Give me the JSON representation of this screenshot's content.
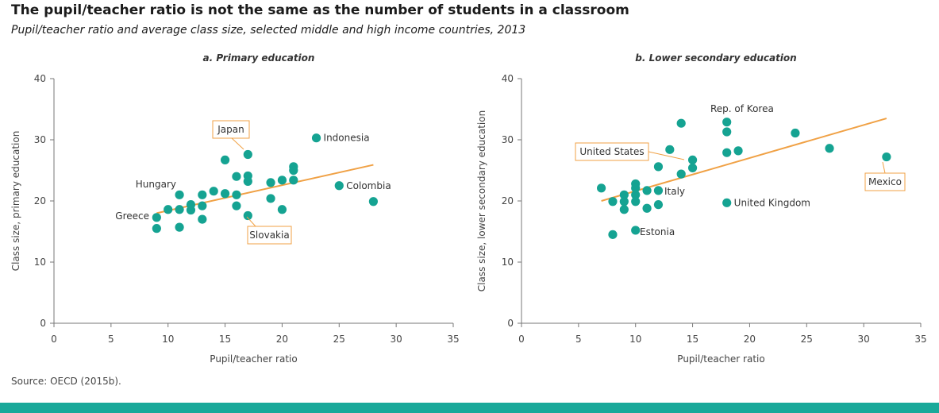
{
  "header": {
    "title": "The pupil/teacher ratio is not the same as the number of students in a classroom",
    "subtitle": "Pupil/teacher ratio and average class size, selected middle and high income countries, 2013"
  },
  "footer": {
    "source": "Source: OECD (2015b)."
  },
  "colors": {
    "points": "#15a392",
    "trend": "#f0a145",
    "bottom_bar": "#1aa99a",
    "label_box": "#f0a145"
  },
  "chart_data": [
    {
      "type": "scatter",
      "title": "a. Primary education",
      "xlabel": "Pupil/teacher ratio",
      "ylabel": "Class size, primary education",
      "xlim": [
        0,
        35
      ],
      "ylim": [
        0,
        40
      ],
      "xticks": [
        "0",
        "5",
        "10",
        "15",
        "20",
        "25",
        "30",
        "35"
      ],
      "yticks": [
        "0",
        "10",
        "20",
        "30",
        "40"
      ],
      "points": [
        [
          9,
          17.3
        ],
        [
          9,
          15.5
        ],
        [
          10,
          18.6
        ],
        [
          11,
          21
        ],
        [
          11,
          18.6
        ],
        [
          11,
          15.7
        ],
        [
          12,
          18.5
        ],
        [
          12,
          19.4
        ],
        [
          13,
          21
        ],
        [
          13,
          19.2
        ],
        [
          13,
          17
        ],
        [
          14,
          21.6
        ],
        [
          15,
          26.7
        ],
        [
          15,
          21.2
        ],
        [
          16,
          24
        ],
        [
          16,
          21
        ],
        [
          16,
          19.2
        ],
        [
          17,
          27.6
        ],
        [
          17,
          24.1
        ],
        [
          17,
          23.2
        ],
        [
          17,
          17.6
        ],
        [
          19,
          23
        ],
        [
          19,
          20.4
        ],
        [
          20,
          23.4
        ],
        [
          20,
          18.6
        ],
        [
          21,
          25.6
        ],
        [
          21,
          25
        ],
        [
          21,
          23.4
        ],
        [
          23,
          30.3
        ],
        [
          25,
          22.5
        ],
        [
          28,
          19.9
        ]
      ],
      "trendline": [
        [
          9,
          18
        ],
        [
          28,
          25.9
        ]
      ],
      "annotations": [
        {
          "text": "Indonesia",
          "x": 23,
          "y": 30.3,
          "boxed": false
        },
        {
          "text": "Colombia",
          "x": 25,
          "y": 22.5,
          "boxed": false
        },
        {
          "text": "Hungary",
          "x": 11,
          "y": 21,
          "boxed": false
        },
        {
          "text": "Greece",
          "x": 9,
          "y": 17.3,
          "boxed": false
        },
        {
          "text": "Japan",
          "x": 17,
          "y": 27.6,
          "boxed": true
        },
        {
          "text": "Slovakia",
          "x": 17,
          "y": 17.6,
          "boxed": true
        }
      ]
    },
    {
      "type": "scatter",
      "title": "b. Lower secondary education",
      "xlabel": "Pupil/teacher ratio",
      "ylabel": "Class size, lower secondary education",
      "xlim": [
        0,
        35
      ],
      "ylim": [
        0,
        40
      ],
      "xticks": [
        "0",
        "5",
        "10",
        "15",
        "20",
        "25",
        "30",
        "35"
      ],
      "yticks": [
        "0",
        "10",
        "20",
        "30",
        "40"
      ],
      "points": [
        [
          7,
          22.1
        ],
        [
          8,
          19.9
        ],
        [
          8,
          14.5
        ],
        [
          9,
          21
        ],
        [
          9,
          19.9
        ],
        [
          9,
          18.6
        ],
        [
          10,
          22.8
        ],
        [
          10,
          22.1
        ],
        [
          10,
          21
        ],
        [
          10,
          19.9
        ],
        [
          10,
          15.2
        ],
        [
          11,
          21.7
        ],
        [
          11,
          18.8
        ],
        [
          12,
          25.6
        ],
        [
          12,
          21.7
        ],
        [
          12,
          19.4
        ],
        [
          13,
          28.4
        ],
        [
          14,
          32.7
        ],
        [
          14,
          24.4
        ],
        [
          15,
          26.7
        ],
        [
          15,
          25.4
        ],
        [
          18,
          32.9
        ],
        [
          18,
          31.3
        ],
        [
          18,
          27.9
        ],
        [
          18,
          19.7
        ],
        [
          19,
          28.2
        ],
        [
          24,
          31.1
        ],
        [
          27,
          28.6
        ],
        [
          32,
          27.2
        ]
      ],
      "trendline": [
        [
          7,
          20
        ],
        [
          32,
          33.5
        ]
      ],
      "annotations": [
        {
          "text": "Rep. of Korea",
          "x": 18,
          "y": 32.9,
          "boxed": false
        },
        {
          "text": "United Kingdom",
          "x": 18,
          "y": 19.7,
          "boxed": false
        },
        {
          "text": "Italy",
          "x": 12,
          "y": 21.7,
          "boxed": false
        },
        {
          "text": "Estonia",
          "x": 10,
          "y": 15.2,
          "boxed": false
        },
        {
          "text": "United States",
          "x": 15,
          "y": 26.7,
          "boxed": true
        },
        {
          "text": "Mexico",
          "x": 32,
          "y": 27.2,
          "boxed": true
        }
      ]
    }
  ]
}
